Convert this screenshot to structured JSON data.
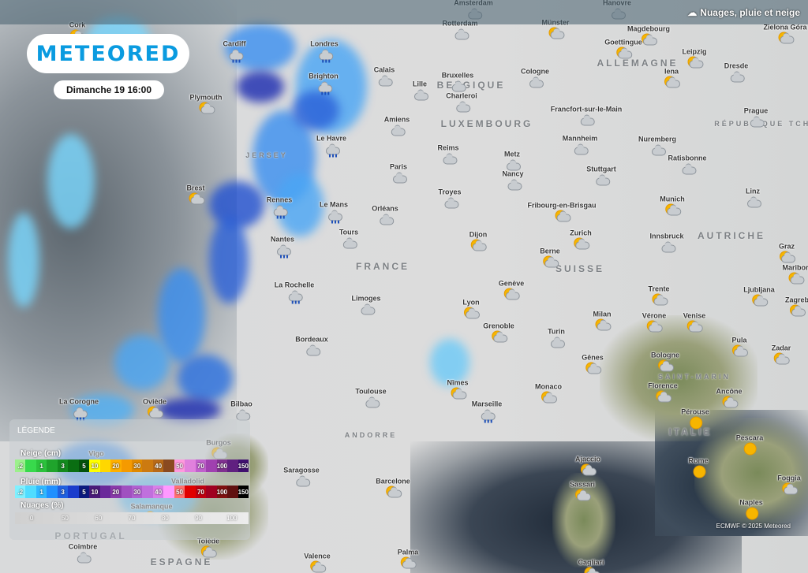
{
  "header": {
    "logo": "METEORED",
    "datetime": "Dimanche 19 16:00",
    "layer_title": "Nuages, pluie et neige",
    "layer_icon": "cloud-icon"
  },
  "legend": {
    "title": "LÉGENDE",
    "snow": {
      "label": "Neige (cm)",
      "steps": [
        ".2",
        "",
        "1",
        "",
        "3",
        "",
        "5",
        "10",
        "",
        "20",
        "",
        "30",
        "",
        "40",
        "",
        "50",
        "",
        "70",
        "",
        "100",
        "",
        "150"
      ],
      "colors": [
        "#9cf08c",
        "#38d94c",
        "#2cc23c",
        "#1fa42c",
        "#138a1e",
        "#0a6e12",
        "#04520a",
        "#ffff00",
        "#ffd700",
        "#ffb000",
        "#f59a00",
        "#e08a00",
        "#cc7a10",
        "#b86a18",
        "#8a4a20",
        "#ff99dd",
        "#e080dd",
        "#c060cc",
        "#a040b0",
        "#803090",
        "#602080",
        "#401070"
      ]
    },
    "rain": {
      "label": "Pluie (mm)",
      "steps": [
        ".2",
        "",
        "1",
        "",
        "3",
        "",
        "5",
        "10",
        "",
        "20",
        "",
        "30",
        "",
        "40",
        "",
        "50",
        "",
        "70",
        "",
        "100",
        "",
        "150"
      ],
      "colors": [
        "#80f0ff",
        "#50dcff",
        "#30b8ff",
        "#2090ff",
        "#2060e0",
        "#1a3ccc",
        "#0c1a80",
        "#4a1a7a",
        "#6a2a9a",
        "#8a3aaa",
        "#a050c0",
        "#b060d0",
        "#c070dd",
        "#d880e8",
        "#ff99ff",
        "#ff7070",
        "#e00000",
        "#c00010",
        "#a00020",
        "#801010",
        "#601010",
        "#000000"
      ]
    },
    "clouds": {
      "label": "Nuages (%)",
      "steps": [
        "0",
        "50",
        "60",
        "70",
        "80",
        "90",
        "100"
      ]
    }
  },
  "cities": [
    {
      "name": "Cork",
      "icon": "sun-cloud"
    },
    {
      "name": "Amsterdam",
      "icon": "cloud"
    },
    {
      "name": "Hanovre",
      "icon": "cloud"
    },
    {
      "name": "Magdebourg",
      "icon": "sun-cloud"
    },
    {
      "name": "Zielona Góra",
      "icon": "sun-cloud"
    },
    {
      "name": "Rotterdam",
      "icon": "cloud"
    },
    {
      "name": "Münster",
      "icon": "sun-cloud"
    },
    {
      "name": "Cardiff",
      "icon": "rain"
    },
    {
      "name": "Londres",
      "icon": "rain"
    },
    {
      "name": "Goettingue",
      "icon": "sun-cloud"
    },
    {
      "name": "Leipzig",
      "icon": "sun-cloud"
    },
    {
      "name": "Dresde",
      "icon": "cloud"
    },
    {
      "name": "Calais",
      "icon": "cloud"
    },
    {
      "name": "Lille",
      "icon": "cloud"
    },
    {
      "name": "Bruxelles",
      "icon": "cloud"
    },
    {
      "name": "Cologne",
      "icon": "cloud"
    },
    {
      "name": "Iena",
      "icon": "sun-cloud"
    },
    {
      "name": "Brighton",
      "icon": "rain"
    },
    {
      "name": "Plymouth",
      "icon": "sun-cloud"
    },
    {
      "name": "Charleroi",
      "icon": "cloud"
    },
    {
      "name": "Francfort-sur-le-Main",
      "icon": "cloud"
    },
    {
      "name": "Prague",
      "icon": "cloud"
    },
    {
      "name": "Amiens",
      "icon": "cloud"
    },
    {
      "name": "Le Havre",
      "icon": "rain"
    },
    {
      "name": "Mannheim",
      "icon": "cloud"
    },
    {
      "name": "Nuremberg",
      "icon": "cloud"
    },
    {
      "name": "Reims",
      "icon": "cloud"
    },
    {
      "name": "Metz",
      "icon": "cloud"
    },
    {
      "name": "Paris",
      "icon": "cloud"
    },
    {
      "name": "Stuttgart",
      "icon": "cloud"
    },
    {
      "name": "Ratisbonne",
      "icon": "cloud"
    },
    {
      "name": "Nancy",
      "icon": "cloud"
    },
    {
      "name": "Brest",
      "icon": "sun-cloud"
    },
    {
      "name": "Troyes",
      "icon": "cloud"
    },
    {
      "name": "Linz",
      "icon": "cloud"
    },
    {
      "name": "Rennes",
      "icon": "rain"
    },
    {
      "name": "Le Mans",
      "icon": "rain"
    },
    {
      "name": "Orléans",
      "icon": "cloud"
    },
    {
      "name": "Fribourg-en-Brisgau",
      "icon": "sun-cloud"
    },
    {
      "name": "Munich",
      "icon": "sun-cloud"
    },
    {
      "name": "Tours",
      "icon": "cloud"
    },
    {
      "name": "Dijon",
      "icon": "sun-cloud"
    },
    {
      "name": "Zurich",
      "icon": "sun-cloud"
    },
    {
      "name": "Innsbruck",
      "icon": "cloud"
    },
    {
      "name": "Graz",
      "icon": "sun-cloud"
    },
    {
      "name": "Nantes",
      "icon": "rain"
    },
    {
      "name": "Berne",
      "icon": "sun-cloud"
    },
    {
      "name": "Maribor",
      "icon": "sun-cloud"
    },
    {
      "name": "Genève",
      "icon": "sun-cloud"
    },
    {
      "name": "La Rochelle",
      "icon": "rain"
    },
    {
      "name": "Trente",
      "icon": "sun-cloud"
    },
    {
      "name": "Ljubljana",
      "icon": "sun-cloud"
    },
    {
      "name": "Zagreb",
      "icon": "sun-cloud"
    },
    {
      "name": "Limoges",
      "icon": "cloud"
    },
    {
      "name": "Lyon",
      "icon": "sun-cloud"
    },
    {
      "name": "Milan",
      "icon": "sun-cloud"
    },
    {
      "name": "Vérone",
      "icon": "sun-cloud"
    },
    {
      "name": "Venise",
      "icon": "sun-cloud"
    },
    {
      "name": "Grenoble",
      "icon": "sun-cloud"
    },
    {
      "name": "Turin",
      "icon": "cloud"
    },
    {
      "name": "Pula",
      "icon": "sun-cloud"
    },
    {
      "name": "Bordeaux",
      "icon": "cloud"
    },
    {
      "name": "Bologne",
      "icon": "sun-cloud"
    },
    {
      "name": "Gênes",
      "icon": "sun-cloud"
    },
    {
      "name": "Zadar",
      "icon": "sun-cloud"
    },
    {
      "name": "Florence",
      "icon": "sun-cloud"
    },
    {
      "name": "Ancône",
      "icon": "sun-cloud"
    },
    {
      "name": "Nîmes",
      "icon": "sun-cloud"
    },
    {
      "name": "Toulouse",
      "icon": "cloud"
    },
    {
      "name": "Monaco",
      "icon": "sun-cloud"
    },
    {
      "name": "Marseille",
      "icon": "rain"
    },
    {
      "name": "La Corogne",
      "icon": "rain"
    },
    {
      "name": "Oviède",
      "icon": "sun-cloud"
    },
    {
      "name": "Bilbao",
      "icon": "cloud"
    },
    {
      "name": "Pérouse",
      "icon": "sun"
    },
    {
      "name": "Burgos",
      "icon": "sun-cloud"
    },
    {
      "name": "Pescara",
      "icon": "sun"
    },
    {
      "name": "Vigo",
      "icon": "rain"
    },
    {
      "name": "Ajaccio",
      "icon": "sun-cloud"
    },
    {
      "name": "Rome",
      "icon": "sun"
    },
    {
      "name": "Saragosse",
      "icon": "cloud"
    },
    {
      "name": "Barcelone",
      "icon": "sun-cloud"
    },
    {
      "name": "Foggia",
      "icon": "sun-cloud"
    },
    {
      "name": "Sassari",
      "icon": "sun-cloud"
    },
    {
      "name": "Naples",
      "icon": "sun"
    },
    {
      "name": "Valladolid",
      "icon": "cloud"
    },
    {
      "name": "Salamanque",
      "icon": "sun-cloud"
    },
    {
      "name": "Coimbre",
      "icon": "cloud"
    },
    {
      "name": "Tolède",
      "icon": "sun-cloud"
    },
    {
      "name": "Valence",
      "icon": "sun-cloud"
    },
    {
      "name": "Palma",
      "icon": "sun-cloud"
    },
    {
      "name": "Cagliari",
      "icon": "sun-cloud"
    }
  ],
  "countries": [
    "BELGIQUE",
    "ALLEMAGNE",
    "LUXEMBOURG",
    "FRANCE",
    "SUISSE",
    "AUTRICHE",
    "ITALIE",
    "PORTUGAL",
    "ESPAGNE",
    "JERSEY",
    "SAINT-MARIN",
    "RÉPUBLIQUE TCHÈQUE",
    "ANDORRE"
  ],
  "credit": "ECMWF © 2025 Meteored"
}
